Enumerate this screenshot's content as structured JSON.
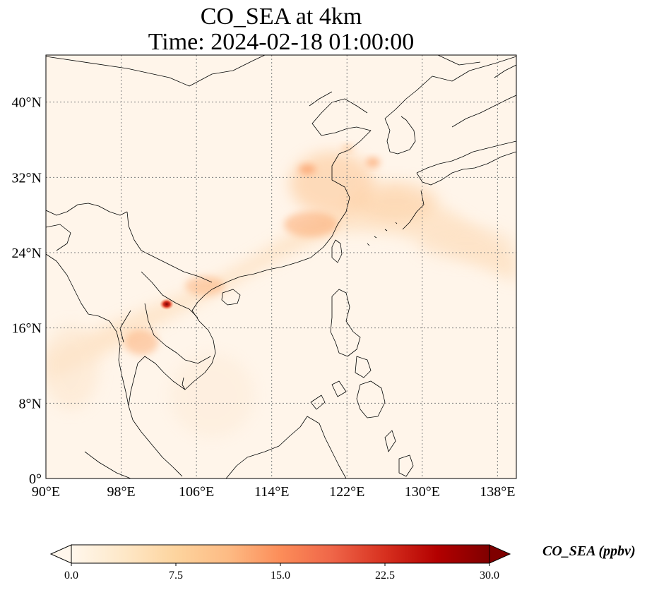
{
  "title_line1": "CO_SEA at 4km",
  "title_line2": "Time: 2024-02-18 01:00:00",
  "map": {
    "lon_range": [
      90,
      140
    ],
    "lat_range": [
      0,
      45
    ],
    "lon_ticks": [
      {
        "value": 90,
        "label": "90°E"
      },
      {
        "value": 98,
        "label": "98°E"
      },
      {
        "value": 106,
        "label": "106°E"
      },
      {
        "value": 114,
        "label": "114°E"
      },
      {
        "value": 122,
        "label": "122°E"
      },
      {
        "value": 130,
        "label": "130°E"
      },
      {
        "value": 138,
        "label": "138°E"
      }
    ],
    "lat_ticks": [
      {
        "value": 0,
        "label": "0°"
      },
      {
        "value": 8,
        "label": "8°N"
      },
      {
        "value": 16,
        "label": "16°N"
      },
      {
        "value": 24,
        "label": "24°N"
      },
      {
        "value": 32,
        "label": "32°N"
      },
      {
        "value": 40,
        "label": "40°N"
      }
    ],
    "gridlines": true,
    "colormap": "OrRd",
    "colors": {
      "background": "#fff5ea",
      "coastline": "#000000",
      "gridline": "#808080"
    }
  },
  "colorbar": {
    "label": "CO_SEA (ppbv)",
    "min": 0.0,
    "max": 30.0,
    "extend": "both",
    "ticks": [
      {
        "value": 0.0,
        "label": "0.0"
      },
      {
        "value": 7.5,
        "label": "7.5"
      },
      {
        "value": 15.0,
        "label": "15.0"
      },
      {
        "value": 22.5,
        "label": "22.5"
      },
      {
        "value": 30.0,
        "label": "30.0"
      }
    ],
    "stops": [
      "#fff7ec",
      "#fee8c8",
      "#fdd49e",
      "#fdbb84",
      "#fc8d59",
      "#ef6548",
      "#d7301f",
      "#b30000",
      "#7f0000"
    ]
  }
}
